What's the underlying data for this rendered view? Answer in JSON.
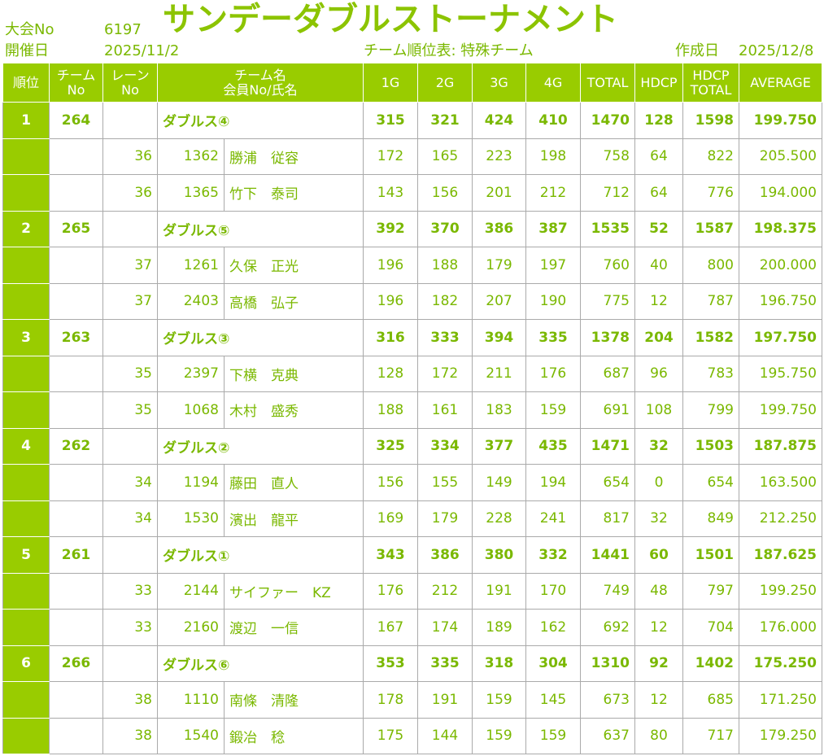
{
  "header": {
    "tournament_label": "大会No",
    "tournament_no": "6197",
    "title": "サンデーダブルストーナメント",
    "date_label": "開催日",
    "date": "2025/11/2",
    "subtitle": "チーム順位表: 特殊チーム",
    "created_label": "作成日",
    "created_date": "2025/12/8"
  },
  "table": {
    "columns": [
      [
        "順位"
      ],
      [
        "チーム",
        "No"
      ],
      [
        "レーン",
        "No"
      ],
      [
        "チーム名",
        "会員No/氏名"
      ],
      [
        "1G"
      ],
      [
        "2G"
      ],
      [
        "3G"
      ],
      [
        "4G"
      ],
      [
        "TOTAL"
      ],
      [
        "HDCP"
      ],
      [
        "HDCP",
        "TOTAL"
      ],
      [
        "AVERAGE"
      ]
    ],
    "teams": [
      {
        "rank": 1,
        "team_no": 264,
        "name": "ダブルス④",
        "scores": [
          315,
          321,
          424,
          410,
          1470,
          128,
          1598,
          "199.750"
        ],
        "members": [
          {
            "lane": 36,
            "member_no": 1362,
            "name": "勝浦　従容",
            "scores": [
              172,
              165,
              223,
              198,
              758,
              64,
              822,
              "205.500"
            ]
          },
          {
            "lane": 36,
            "member_no": 1365,
            "name": "竹下　泰司",
            "scores": [
              143,
              156,
              201,
              212,
              712,
              64,
              776,
              "194.000"
            ]
          }
        ]
      },
      {
        "rank": 2,
        "team_no": 265,
        "name": "ダブルス⑤",
        "scores": [
          392,
          370,
          386,
          387,
          1535,
          52,
          1587,
          "198.375"
        ],
        "members": [
          {
            "lane": 37,
            "member_no": 1261,
            "name": "久保　正光",
            "scores": [
              196,
              188,
              179,
              197,
              760,
              40,
              800,
              "200.000"
            ]
          },
          {
            "lane": 37,
            "member_no": 2403,
            "name": "高橋　弘子",
            "scores": [
              196,
              182,
              207,
              190,
              775,
              12,
              787,
              "196.750"
            ]
          }
        ]
      },
      {
        "rank": 3,
        "team_no": 263,
        "name": "ダブルス③",
        "scores": [
          316,
          333,
          394,
          335,
          1378,
          204,
          1582,
          "197.750"
        ],
        "members": [
          {
            "lane": 35,
            "member_no": 2397,
            "name": "下横　克典",
            "scores": [
              128,
              172,
              211,
              176,
              687,
              96,
              783,
              "195.750"
            ]
          },
          {
            "lane": 35,
            "member_no": 1068,
            "name": "木村　盛秀",
            "scores": [
              188,
              161,
              183,
              159,
              691,
              108,
              799,
              "199.750"
            ]
          }
        ]
      },
      {
        "rank": 4,
        "team_no": 262,
        "name": "ダブルス②",
        "scores": [
          325,
          334,
          377,
          435,
          1471,
          32,
          1503,
          "187.875"
        ],
        "members": [
          {
            "lane": 34,
            "member_no": 1194,
            "name": "藤田　直人",
            "scores": [
              156,
              155,
              149,
              194,
              654,
              0,
              654,
              "163.500"
            ]
          },
          {
            "lane": 34,
            "member_no": 1530,
            "name": "濱出　龍平",
            "scores": [
              169,
              179,
              228,
              241,
              817,
              32,
              849,
              "212.250"
            ]
          }
        ]
      },
      {
        "rank": 5,
        "team_no": 261,
        "name": "ダブルス①",
        "scores": [
          343,
          386,
          380,
          332,
          1441,
          60,
          1501,
          "187.625"
        ],
        "members": [
          {
            "lane": 33,
            "member_no": 2144,
            "name": "サイファー　KZ",
            "scores": [
              176,
              212,
              191,
              170,
              749,
              48,
              797,
              "199.250"
            ]
          },
          {
            "lane": 33,
            "member_no": 2160,
            "name": "渡辺　一信",
            "scores": [
              167,
              174,
              189,
              162,
              692,
              12,
              704,
              "176.000"
            ]
          }
        ]
      },
      {
        "rank": 6,
        "team_no": 266,
        "name": "ダブルス⑥",
        "scores": [
          353,
          335,
          318,
          304,
          1310,
          92,
          1402,
          "175.250"
        ],
        "members": [
          {
            "lane": 38,
            "member_no": 1110,
            "name": "南條　清隆",
            "scores": [
              178,
              191,
              159,
              145,
              673,
              12,
              685,
              "171.250"
            ]
          },
          {
            "lane": 38,
            "member_no": 1540,
            "name": "鍛冶　稔",
            "scores": [
              175,
              144,
              159,
              159,
              637,
              80,
              717,
              "179.250"
            ]
          }
        ]
      }
    ]
  }
}
